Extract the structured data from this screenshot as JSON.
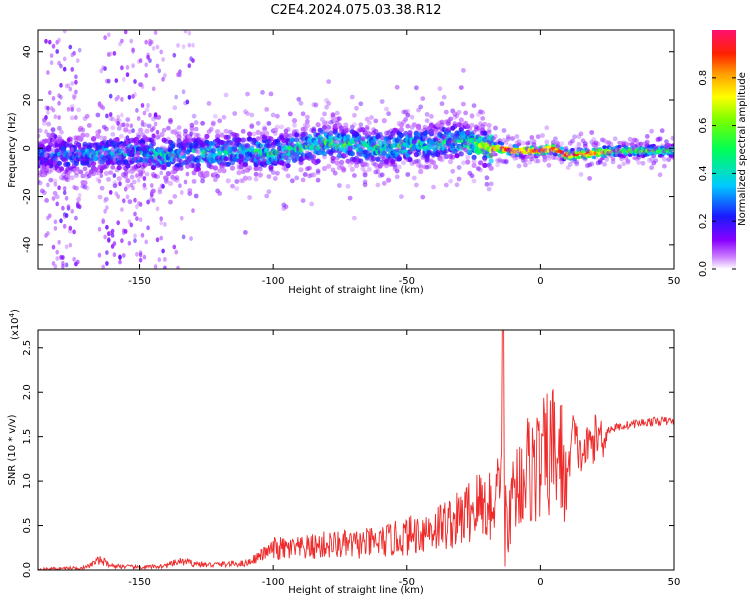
{
  "title": "C2E4.2024.075.03.38.R12",
  "colors": {
    "snr_line": "#ee2a2a",
    "background": "#ffffff"
  },
  "chart_data": [
    {
      "type": "heatmap",
      "xlabel": "Height of straight line (km)",
      "ylabel": "Frequency (Hz)",
      "xlim": [
        -188,
        50
      ],
      "ylim": [
        -50,
        49
      ],
      "xticks": [
        -150,
        -100,
        -50,
        0,
        50
      ],
      "yticks": [
        -40,
        -20,
        0,
        20,
        40
      ],
      "colorbar": {
        "label": "Normalized spectral amplitude",
        "range": [
          0.0,
          1.0
        ],
        "ticks": [
          0.0,
          0.2,
          0.4,
          0.6,
          0.8
        ]
      },
      "ridge": {
        "x": [
          -188,
          -175,
          -160,
          -150,
          -140,
          -125,
          -110,
          -100,
          -90,
          -80,
          -70,
          -60,
          -50,
          -40,
          -32,
          -25,
          -20,
          -15,
          -10,
          -5,
          0,
          5,
          10,
          20,
          30,
          40,
          50
        ],
        "freq": [
          -3,
          -3,
          -2,
          -2,
          -3,
          -2,
          -1,
          -2,
          0,
          2,
          1,
          0,
          1,
          2,
          3,
          2,
          0,
          0,
          -1,
          -1,
          -1,
          0,
          -3,
          -2,
          -1,
          -1,
          -1
        ],
        "amplitude": [
          0.3,
          0.35,
          0.4,
          0.4,
          0.45,
          0.45,
          0.45,
          0.5,
          0.5,
          0.55,
          0.5,
          0.5,
          0.5,
          0.5,
          0.45,
          0.6,
          0.75,
          0.9,
          0.95,
          0.9,
          0.9,
          1.0,
          0.95,
          0.9,
          0.6,
          0.6,
          0.55
        ]
      }
    },
    {
      "type": "line",
      "xlabel": "Height of straight line (km)",
      "ylabel": "SNR (10 * v/v)",
      "multiplier_label": "(x10",
      "multiplier_exp": "4",
      "multiplier_close": ")",
      "xlim": [
        -188,
        50
      ],
      "ylim": [
        0,
        2.7
      ],
      "xticks": [
        -150,
        -100,
        -50,
        0,
        50
      ],
      "yticks": [
        0.0,
        0.5,
        1.0,
        1.5,
        2.0,
        2.5
      ],
      "series": [
        {
          "x": [
            -188,
            -170,
            -165,
            -160,
            -150,
            -140,
            -135,
            -125,
            -110,
            -100,
            -90,
            -80,
            -70,
            -60,
            -50,
            -40,
            -30,
            -25,
            -20,
            -16,
            -14,
            -12,
            -10,
            -5,
            0,
            5,
            8,
            10,
            12,
            15,
            20,
            25,
            30,
            35,
            40,
            45,
            50
          ],
          "values": [
            0.01,
            0.03,
            0.12,
            0.05,
            0.03,
            0.05,
            0.1,
            0.06,
            0.08,
            0.25,
            0.25,
            0.3,
            0.3,
            0.33,
            0.4,
            0.5,
            0.6,
            0.75,
            0.8,
            0.85,
            1.0,
            0.5,
            0.95,
            1.2,
            1.25,
            1.45,
            1.3,
            1.0,
            1.6,
            1.3,
            1.5,
            1.58,
            1.62,
            1.65,
            1.67,
            1.68,
            1.68
          ]
        }
      ],
      "spike": {
        "x": -14,
        "value": 2.7
      }
    }
  ]
}
